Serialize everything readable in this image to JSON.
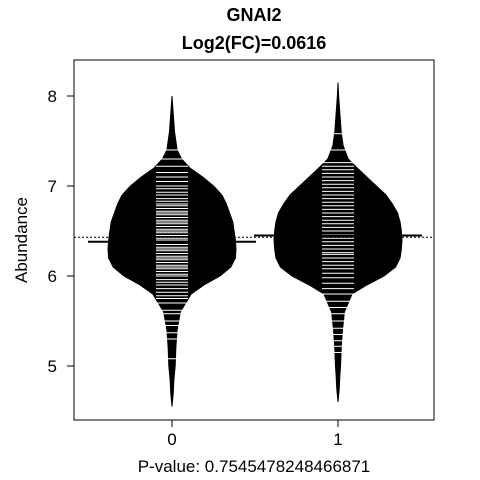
{
  "chart_data": {
    "type": "beanplot",
    "title": "GNAI2",
    "subtitle": "Log2(FC)=0.0616",
    "xlabel": "P-value: 0.7545478248466871",
    "ylabel": "Abundance",
    "categories": [
      "0",
      "1"
    ],
    "ylim": [
      4.4,
      8.4
    ],
    "yticks": [
      5,
      6,
      7,
      8
    ],
    "overall_mean": 6.43,
    "grid": false,
    "series": [
      {
        "name": "0",
        "mean": 6.38,
        "min": 4.55,
        "max": 8.0,
        "observations": [
          5.08,
          5.3,
          5.37,
          5.45,
          5.5,
          5.58,
          5.62,
          5.7,
          5.75,
          5.78,
          5.82,
          5.86,
          5.9,
          5.93,
          5.96,
          6.0,
          6.02,
          6.05,
          6.08,
          6.1,
          6.12,
          6.15,
          6.18,
          6.2,
          6.22,
          6.25,
          6.28,
          6.3,
          6.32,
          6.35,
          6.38,
          6.4,
          6.42,
          6.45,
          6.48,
          6.5,
          6.52,
          6.55,
          6.58,
          6.6,
          6.62,
          6.65,
          6.68,
          6.7,
          6.72,
          6.75,
          6.78,
          6.8,
          6.83,
          6.86,
          6.9,
          6.93,
          6.97,
          7.0,
          7.05,
          7.1,
          7.15,
          7.22,
          7.3,
          7.4
        ],
        "density": [
          [
            4.55,
            0
          ],
          [
            4.7,
            0.02
          ],
          [
            4.85,
            0.03
          ],
          [
            5.0,
            0.05
          ],
          [
            5.2,
            0.06
          ],
          [
            5.4,
            0.08
          ],
          [
            5.6,
            0.13
          ],
          [
            5.8,
            0.3
          ],
          [
            5.9,
            0.5
          ],
          [
            6.0,
            0.75
          ],
          [
            6.1,
            0.92
          ],
          [
            6.2,
            0.99
          ],
          [
            6.3,
            1.0
          ],
          [
            6.4,
            0.99
          ],
          [
            6.5,
            0.97
          ],
          [
            6.6,
            0.95
          ],
          [
            6.7,
            0.9
          ],
          [
            6.8,
            0.85
          ],
          [
            6.9,
            0.78
          ],
          [
            7.0,
            0.65
          ],
          [
            7.1,
            0.48
          ],
          [
            7.2,
            0.28
          ],
          [
            7.3,
            0.15
          ],
          [
            7.4,
            0.08
          ],
          [
            7.6,
            0.04
          ],
          [
            7.8,
            0.02
          ],
          [
            8.0,
            0
          ]
        ]
      },
      {
        "name": "1",
        "mean": 6.45,
        "min": 4.6,
        "max": 8.15,
        "observations": [
          5.15,
          5.22,
          5.28,
          5.35,
          5.42,
          5.5,
          5.58,
          5.65,
          5.72,
          5.8,
          5.86,
          5.92,
          5.98,
          6.03,
          6.08,
          6.12,
          6.16,
          6.2,
          6.24,
          6.26,
          6.3,
          6.34,
          6.38,
          6.42,
          6.46,
          6.5,
          6.54,
          6.58,
          6.62,
          6.66,
          6.7,
          6.74,
          6.78,
          6.82,
          6.86,
          6.9,
          6.94,
          6.98,
          7.02,
          7.06,
          7.1,
          7.14,
          7.18,
          7.22,
          7.26,
          7.4,
          7.58
        ],
        "density": [
          [
            4.6,
            0
          ],
          [
            4.75,
            0.02
          ],
          [
            4.9,
            0.03
          ],
          [
            5.0,
            0.04
          ],
          [
            5.2,
            0.05
          ],
          [
            5.4,
            0.07
          ],
          [
            5.6,
            0.1
          ],
          [
            5.8,
            0.22
          ],
          [
            5.9,
            0.45
          ],
          [
            6.0,
            0.72
          ],
          [
            6.1,
            0.9
          ],
          [
            6.2,
            0.97
          ],
          [
            6.3,
            0.99
          ],
          [
            6.4,
            1.0
          ],
          [
            6.5,
            0.99
          ],
          [
            6.6,
            0.97
          ],
          [
            6.7,
            0.93
          ],
          [
            6.8,
            0.85
          ],
          [
            6.9,
            0.75
          ],
          [
            7.0,
            0.6
          ],
          [
            7.1,
            0.45
          ],
          [
            7.2,
            0.3
          ],
          [
            7.3,
            0.16
          ],
          [
            7.45,
            0.08
          ],
          [
            7.6,
            0.05
          ],
          [
            7.8,
            0.03
          ],
          [
            8.0,
            0.01
          ],
          [
            8.15,
            0
          ]
        ]
      }
    ]
  }
}
